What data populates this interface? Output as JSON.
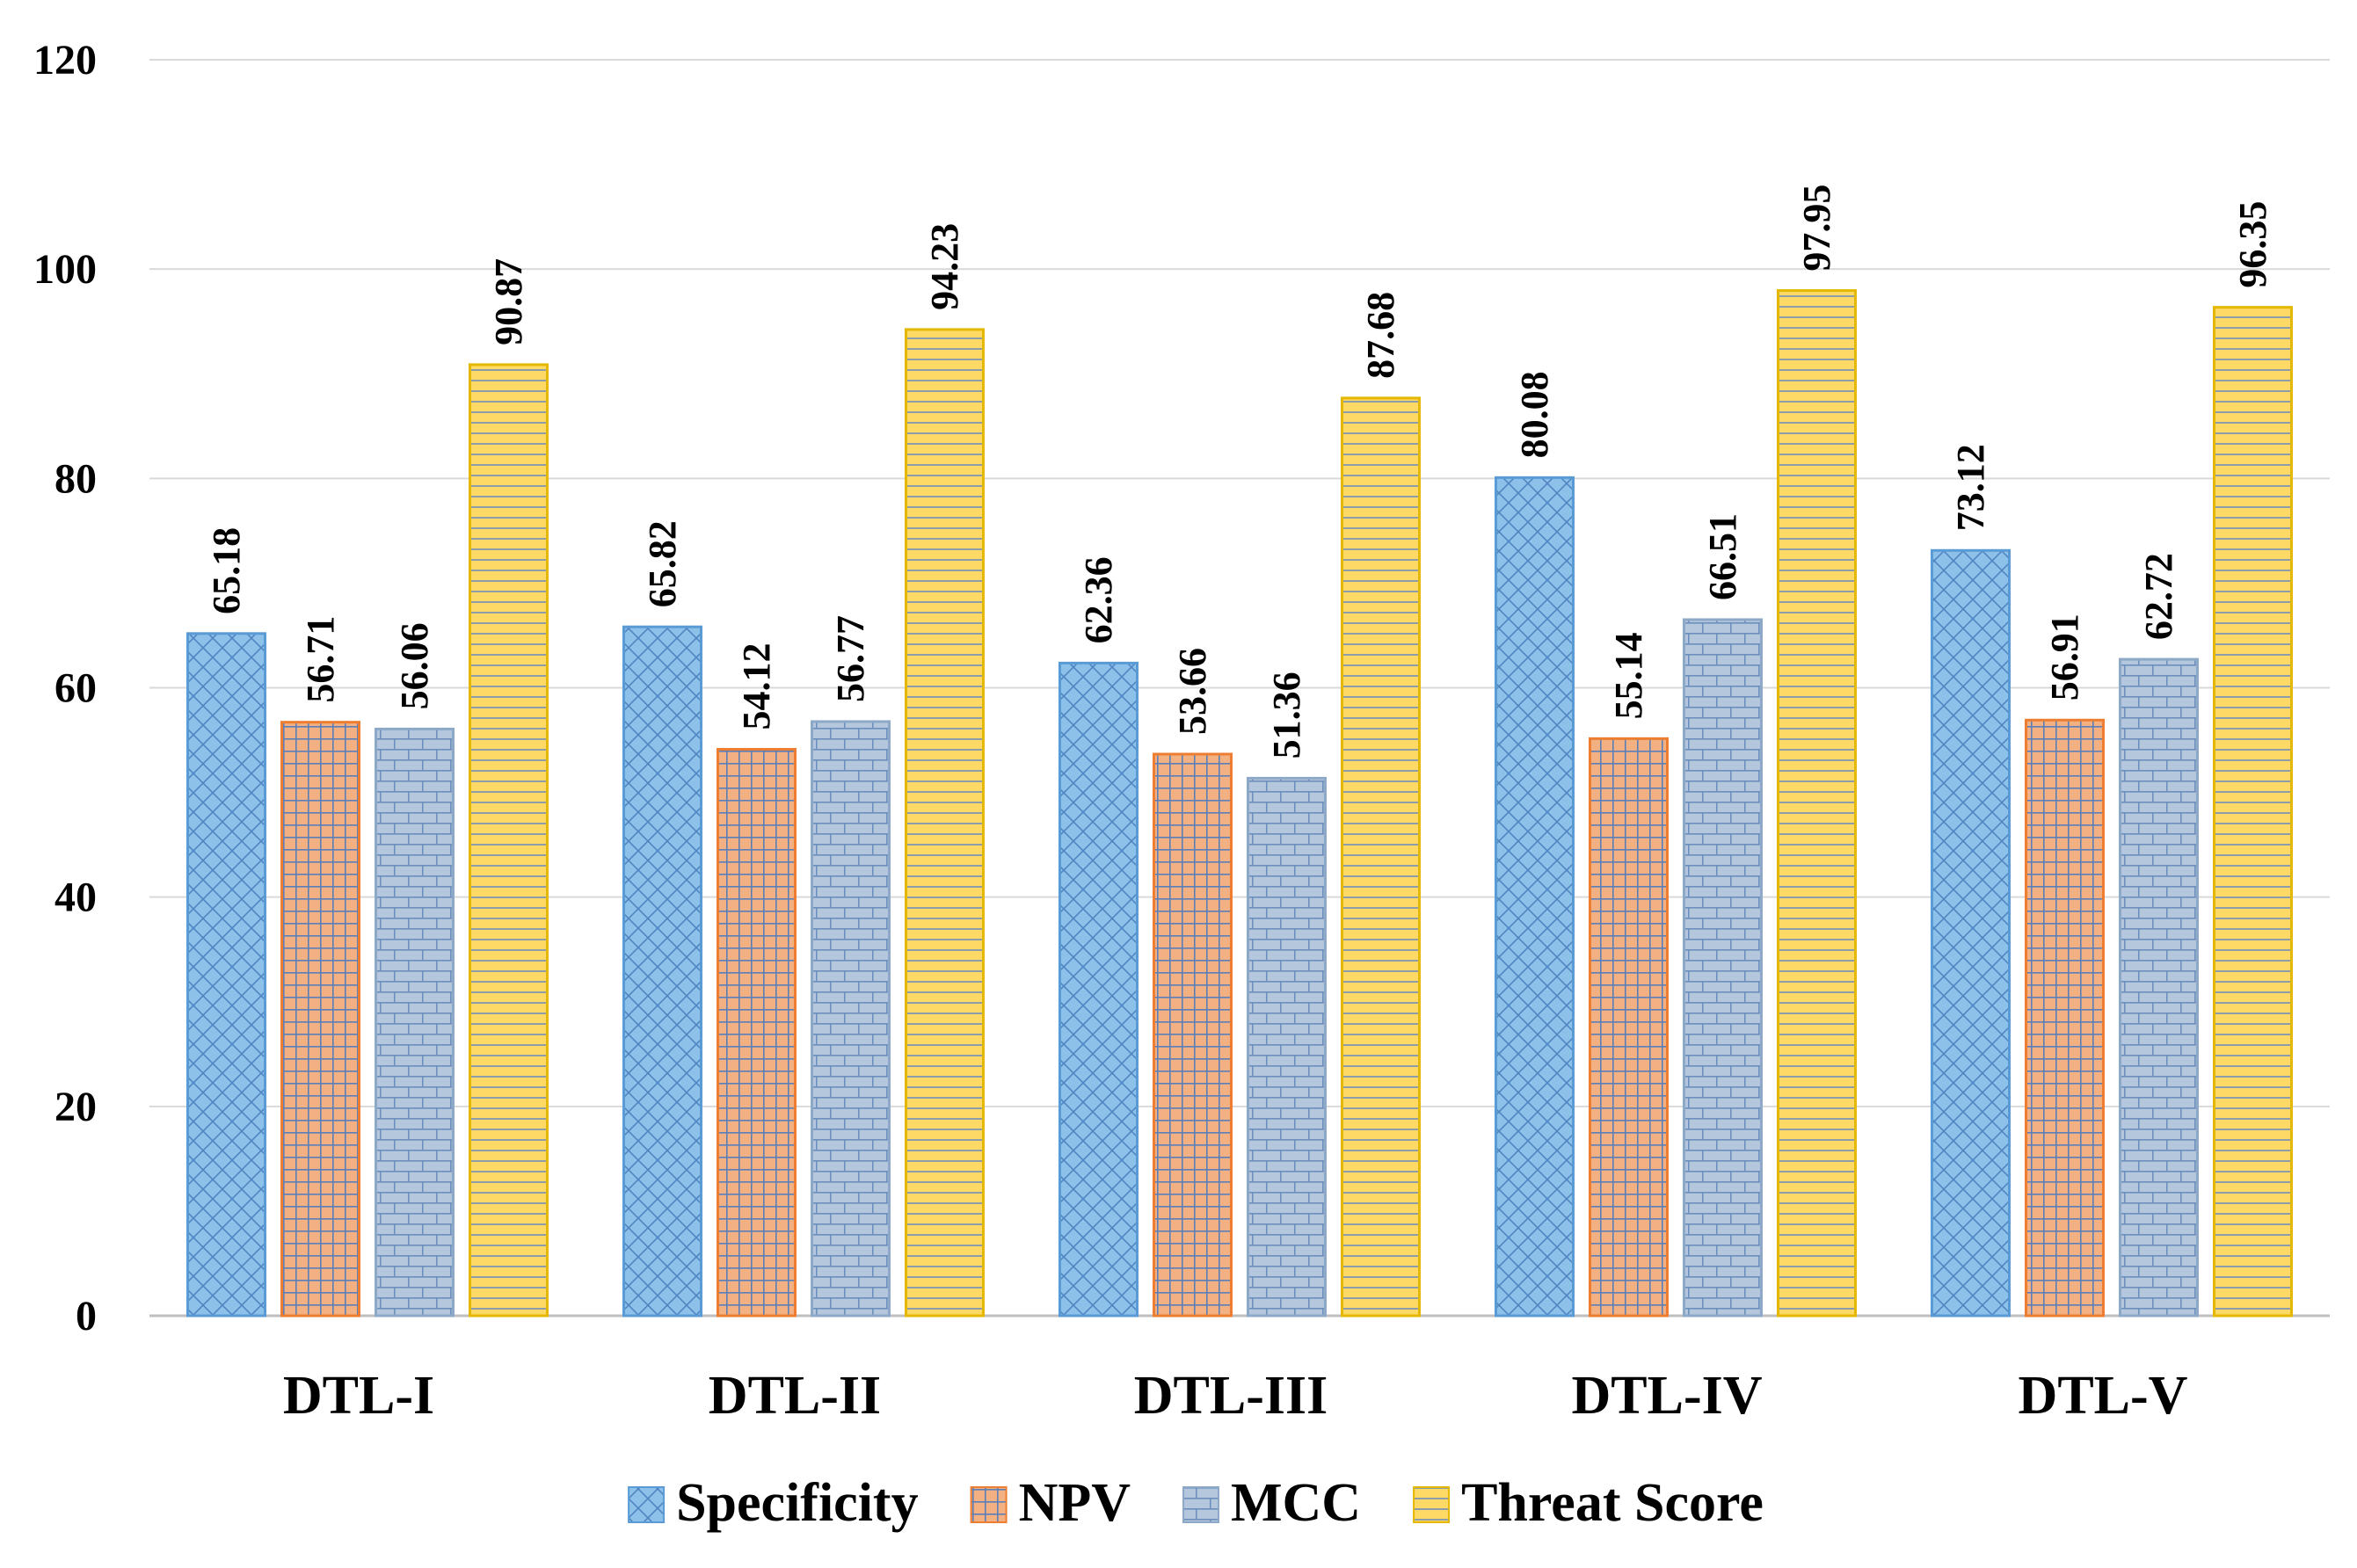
{
  "chart_data": {
    "type": "bar",
    "title": "",
    "xlabel": "",
    "ylabel": "",
    "ylim": [
      0,
      120
    ],
    "yticks": [
      0,
      20,
      40,
      60,
      80,
      100,
      120
    ],
    "grid": true,
    "legend_position": "bottom",
    "categories": [
      "DTL-I",
      "DTL-II",
      "DTL-III",
      "DTL-IV",
      "DTL-V"
    ],
    "series": [
      {
        "name": "Specificity",
        "values": [
          65.18,
          65.82,
          62.36,
          80.08,
          73.12
        ],
        "labels": [
          "65.18",
          "65.82",
          "62.36",
          "80.08",
          "73.12"
        ],
        "color": "#8ec1ea",
        "pattern": "crosshatch"
      },
      {
        "name": "NPV",
        "values": [
          56.71,
          54.12,
          53.66,
          55.14,
          56.91
        ],
        "labels": [
          "56.71",
          "54.12",
          "53.66",
          "55.14",
          "56.91"
        ],
        "color": "#f3b183",
        "pattern": "grid"
      },
      {
        "name": "MCC",
        "values": [
          56.06,
          56.77,
          51.36,
          66.51,
          62.72
        ],
        "labels": [
          "56.06",
          "56.77",
          "51.36",
          "66.51",
          "62.72"
        ],
        "color": "#b4c7dc",
        "pattern": "brick"
      },
      {
        "name": "Threat Score",
        "values": [
          90.87,
          94.23,
          87.68,
          97.95,
          96.35
        ],
        "labels": [
          "90.87",
          "94.23",
          "87.68",
          "97.95",
          "96.35"
        ],
        "color": "#ffd966",
        "pattern": "horizontal"
      }
    ]
  }
}
